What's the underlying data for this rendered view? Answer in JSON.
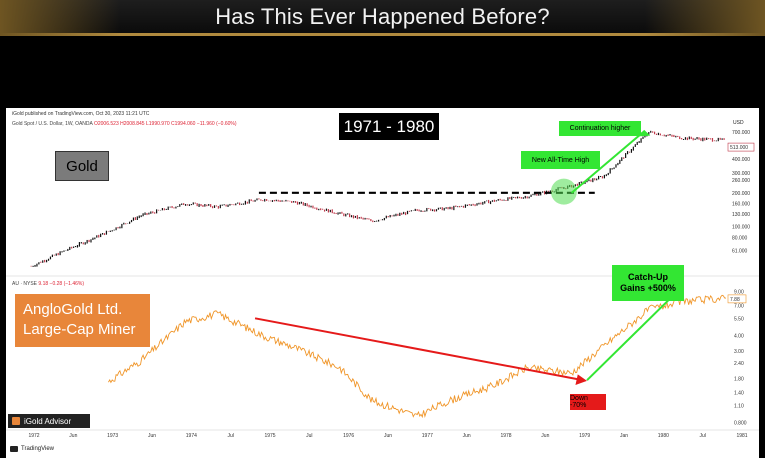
{
  "header": {
    "title": "Has This Ever Happened Before?"
  },
  "chart_header": {
    "published": "iGold published on TradingView.com, Oct 30, 2023 11:21 UTC",
    "gold_symbol": "Gold Spot / U.S. Dollar, 1W, OANDA",
    "gold_ohlc": "O2006.523 H2008.845 L1990.970 C1994.060 −11.960 (−0.60%)",
    "au_symbol": "AU · NYSE",
    "au_values": "9.18 −0.28 (−1.46%)",
    "currency": "USD"
  },
  "annotations": {
    "period": "1971 - 1980",
    "gold_label": "Gold",
    "miner_label_line1": "AngloGold Ltd.",
    "miner_label_line2": "Large-Cap Miner",
    "continuation": "Continuation higher",
    "ath": "New All-Time High",
    "catchup_line1": "Catch-Up",
    "catchup_line2": "Gains +500%",
    "down": "Down -70%"
  },
  "branding": {
    "advisor": "iGold Advisor",
    "tradingview": "TradingView"
  },
  "colors": {
    "gold_candles": "#111111",
    "miner_line": "#f0962a",
    "green_callout": "#33e633",
    "red_arrow": "#e51a1a",
    "miner_box": "#e8863a"
  },
  "chart_data": [
    {
      "type": "line",
      "title": "",
      "scale": "log",
      "x": [
        "1972",
        "1972-06",
        "1973",
        "1973-06",
        "1974",
        "1974-06",
        "1975",
        "1975-06",
        "1976",
        "1976-06",
        "1977",
        "1977-06",
        "1978",
        "1978-06",
        "1979",
        "1979-06",
        "1980",
        "1980-06",
        "1981"
      ],
      "series": [
        {
          "name": "Gold Spot / U.S. Dollar",
          "values": [
            44,
            60,
            90,
            125,
            160,
            150,
            175,
            165,
            130,
            112,
            140,
            145,
            170,
            185,
            230,
            280,
            700,
            620,
            590
          ]
        }
      ],
      "y_ticks": [
        "700.000",
        "400.000",
        "300.000",
        "260.000",
        "200.000",
        "160.000",
        "130.000",
        "100.000",
        "80.000",
        "61.000"
      ],
      "last_value_label": "513.000"
    },
    {
      "type": "line",
      "title": "",
      "scale": "log",
      "x": [
        "1973",
        "1973-06",
        "1974",
        "1974-06",
        "1975",
        "1975-06",
        "1976",
        "1976-06",
        "1977",
        "1977-06",
        "1978",
        "1978-06",
        "1979",
        "1979-06",
        "1980",
        "1980-06",
        "1981"
      ],
      "series": [
        {
          "name": "AU · NYSE",
          "values": [
            1.7,
            2.5,
            5.2,
            6.0,
            4.0,
            3.2,
            2.2,
            1.2,
            0.9,
            1.2,
            1.6,
            2.2,
            2.0,
            3.3,
            6.5,
            7.5,
            8.0
          ]
        }
      ],
      "y_ticks": [
        "9.00",
        "7.00",
        "5.50",
        "4.00",
        "3.00",
        "2.40",
        "1.80",
        "1.40",
        "1.10",
        "0.800"
      ],
      "last_value_label": "7.88"
    }
  ],
  "x_axis_labels": [
    "1972",
    "Jun",
    "1973",
    "Jun",
    "1974",
    "Jul",
    "1975",
    "Jul",
    "1976",
    "Jun",
    "1977",
    "Jun",
    "1978",
    "Jun",
    "1979",
    "Jan",
    "1980",
    "Jul",
    "1981"
  ]
}
